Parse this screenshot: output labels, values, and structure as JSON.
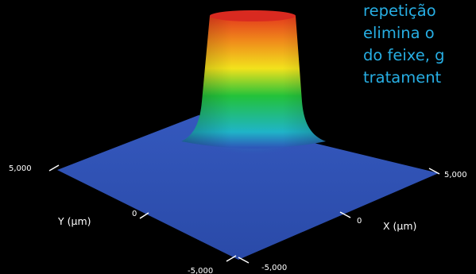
{
  "overlay_text": {
    "lines": [
      "repetição",
      "elimina o",
      "do feixe, g",
      "tratament"
    ]
  },
  "colors": {
    "background": "#000000",
    "text_accent": "#27aee3",
    "axis_text": "#ffffff",
    "base_plane": "#2e53b8"
  },
  "chart_data": {
    "type": "surface-3d",
    "title": "",
    "x_axis": {
      "label": "X (µm)",
      "ticks": [
        -5000,
        0,
        5000
      ],
      "tick_labels": [
        "-5,000",
        "0",
        "5,000"
      ],
      "range": [
        -5000,
        5000
      ]
    },
    "y_axis": {
      "label": "Y (µm)",
      "ticks": [
        -5000,
        0,
        5000
      ],
      "tick_labels": [
        "-5,000",
        "0",
        "5,000"
      ],
      "range": [
        -5000,
        5000
      ]
    },
    "z_axis": {
      "label": "",
      "range": [
        0,
        1
      ]
    },
    "surface": {
      "shape": "flat-top beam intensity profile",
      "colormap": [
        "#2e53b8",
        "#1fb4c8",
        "#23c23a",
        "#f2e21c",
        "#f08a1b",
        "#e0281d"
      ],
      "plateau_level": 1.0,
      "background_level": 0.0
    }
  }
}
